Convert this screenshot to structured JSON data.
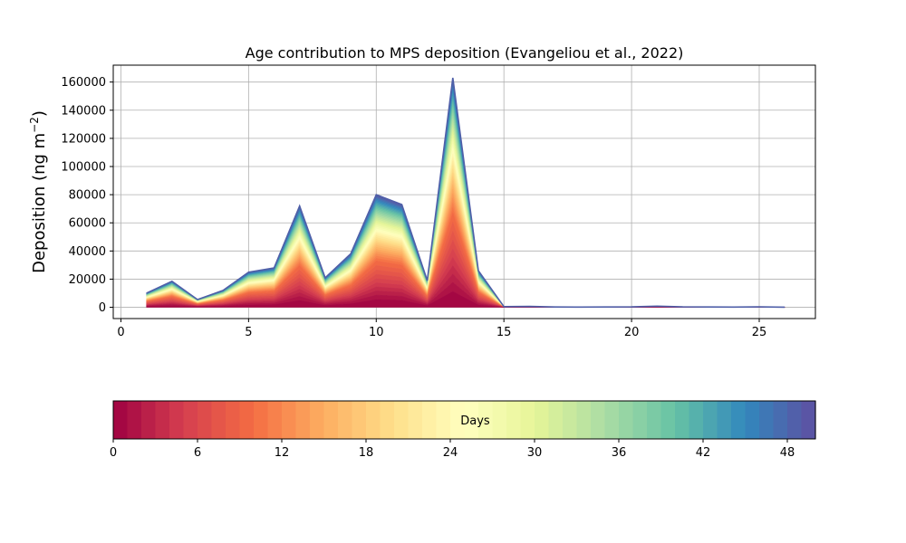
{
  "chart_data": {
    "type": "area",
    "title": "Age contribution to MPS deposition (Evangeliou et al., 2022)",
    "xlabel": "",
    "ylabel_main": "Deposition (ng m",
    "ylabel_sup": "−2",
    "ylabel_close": ")",
    "xlim": [
      -0.3,
      27.2
    ],
    "ylim": [
      -8000,
      172000
    ],
    "grid": true,
    "x_ticks": [
      0,
      5,
      10,
      15,
      20,
      25
    ],
    "y_ticks": [
      0,
      20000,
      40000,
      60000,
      80000,
      100000,
      120000,
      140000,
      160000
    ],
    "x": [
      1,
      2,
      3,
      4,
      5,
      6,
      7,
      8,
      9,
      10,
      11,
      12,
      13,
      14,
      15,
      16,
      17,
      18,
      19,
      20,
      21,
      22,
      23,
      24,
      25,
      26
    ],
    "total": [
      10000,
      18500,
      5500,
      12000,
      25000,
      28000,
      72000,
      21000,
      38000,
      80000,
      73000,
      19000,
      163000,
      26000,
      500,
      600,
      200,
      150,
      200,
      300,
      800,
      300,
      200,
      150,
      300,
      100
    ],
    "age_bins": 50,
    "outline_color": "#4f5fa8",
    "colorbar": {
      "label": "Days",
      "vmin": 0,
      "vmax": 50,
      "ticks": [
        0,
        6,
        12,
        18,
        24,
        30,
        36,
        42,
        48
      ],
      "colormap": "Spectral",
      "colors": [
        "#9e0142",
        "#d53e4f",
        "#f46d43",
        "#fdae61",
        "#fee08b",
        "#ffffbf",
        "#e6f598",
        "#abdda4",
        "#66c2a5",
        "#3288bd",
        "#5e4fa2"
      ]
    }
  }
}
